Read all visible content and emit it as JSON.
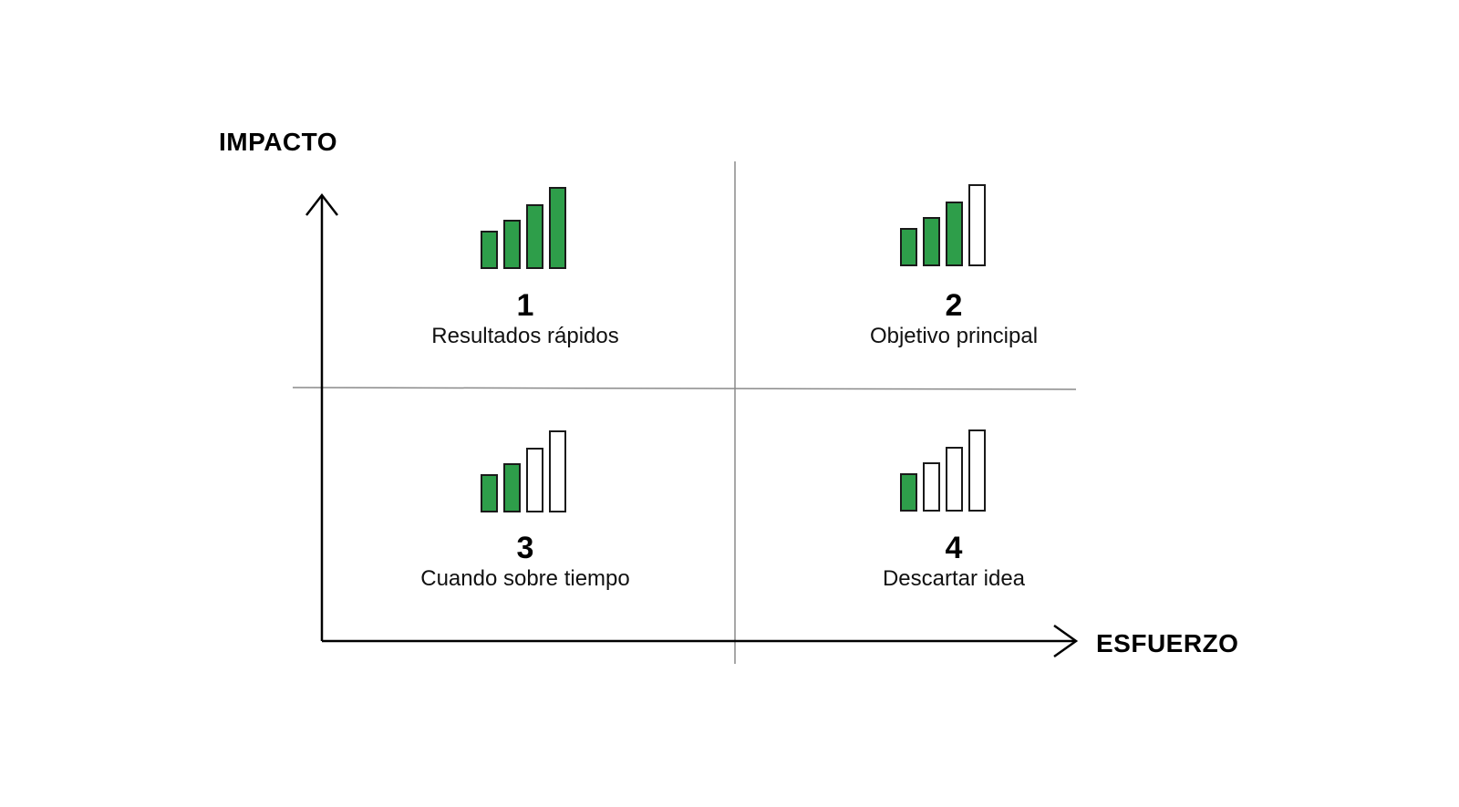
{
  "axes": {
    "y_label": "IMPACTO",
    "x_label": "ESFUERZO"
  },
  "quadrants": [
    {
      "number": "1",
      "label": "Resultados rápidos",
      "level": 4,
      "of": 4
    },
    {
      "number": "2",
      "label": "Objetivo principal",
      "level": 3,
      "of": 4
    },
    {
      "number": "3",
      "label": "Cuando sobre tiempo",
      "level": 2,
      "of": 4
    },
    {
      "number": "4",
      "label": "Descartar idea",
      "level": 1,
      "of": 4
    }
  ],
  "colors": {
    "filled_bar": "#2e9e4a",
    "bar_outline": "#1a1a1a",
    "axis": "#000000",
    "divider": "#8a8a8a"
  }
}
